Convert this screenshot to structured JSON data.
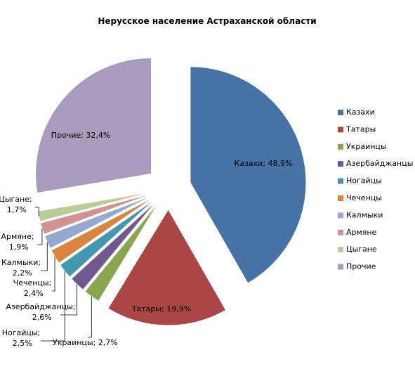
{
  "chart_data": {
    "type": "pie",
    "title": "Нерусское население Астраханской области",
    "categories": [
      "Казахи",
      "Татары",
      "Украинцы",
      "Азербайджанцы",
      "Ногайцы",
      "Чеченцы",
      "Калмыки",
      "Армяне",
      "Цыгане",
      "Прочие"
    ],
    "values": [
      48.9,
      19.9,
      2.7,
      2.6,
      2.5,
      2.4,
      2.2,
      1.9,
      1.7,
      32.4
    ],
    "value_labels": [
      "Казахи; 48,9%",
      "Татары; 19,9%",
      "Украинцы; 2,7%",
      "Азербайджанцы; 2,6%",
      "Ногайцы; 2,5%",
      "Чеченцы; 2,4%",
      "Калмыки; 2,2%",
      "Армяне; 1,9%",
      "Цыгане; 1,7%",
      "Прочие; 32,4%"
    ],
    "colors": [
      "#4572a7",
      "#aa4643",
      "#89a54e",
      "#71588f",
      "#4198af",
      "#db843d",
      "#93a9cf",
      "#d19392",
      "#b9cd96",
      "#a99bbd"
    ],
    "legend": "right"
  }
}
